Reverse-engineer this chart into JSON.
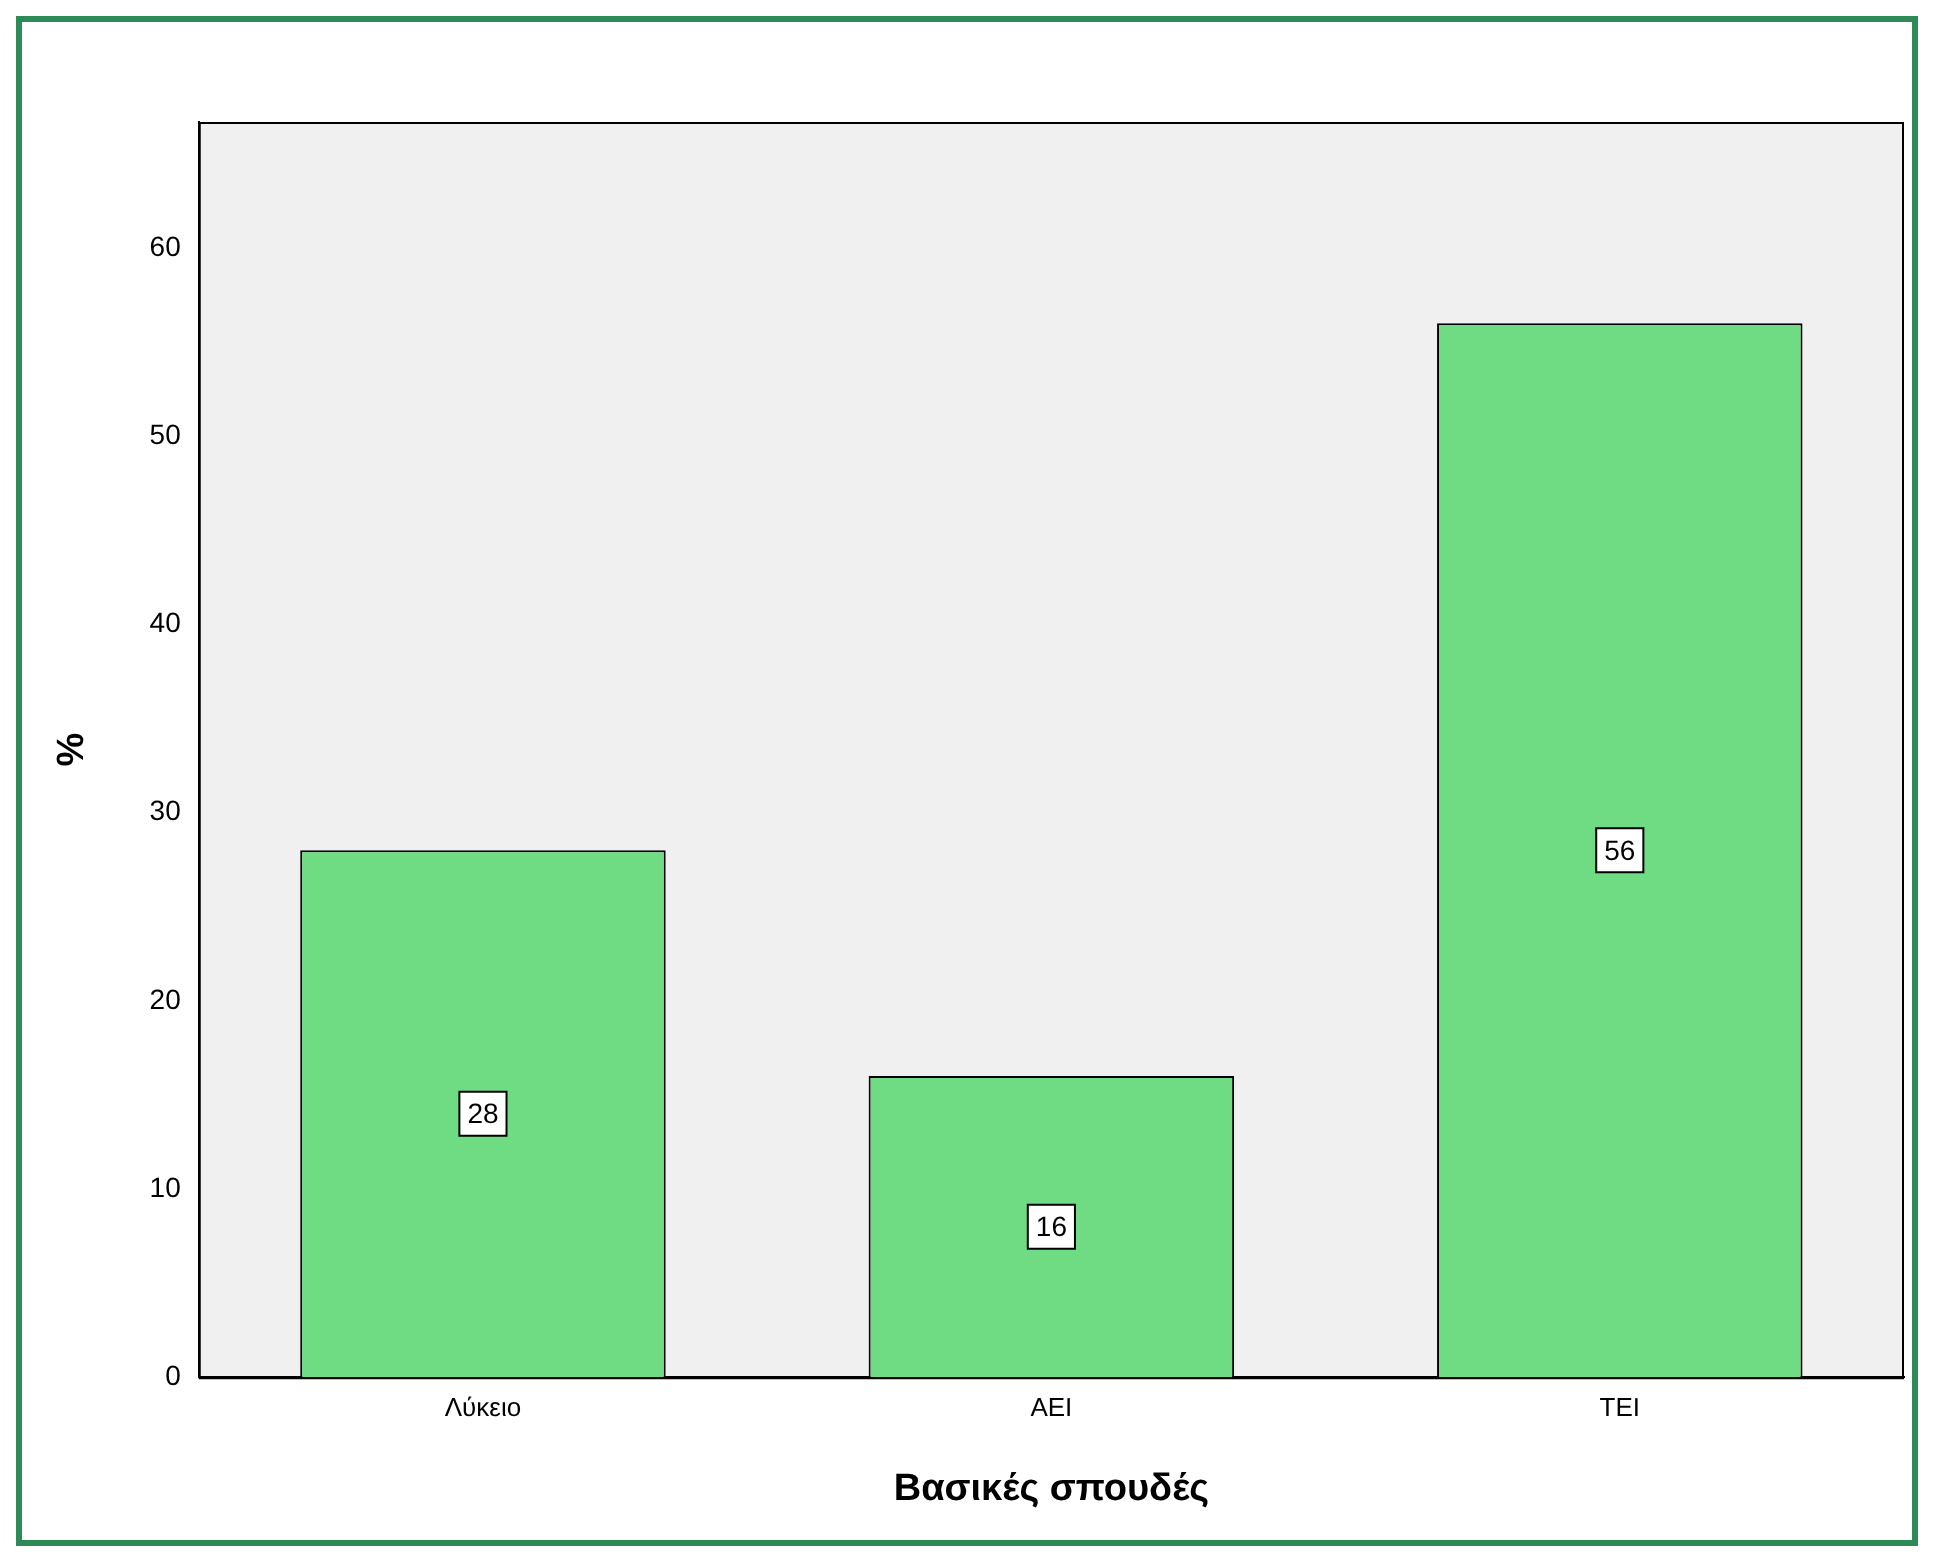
{
  "chart_data": {
    "type": "bar",
    "xlabel": "Βασικές σπουδές",
    "ylabel": "%",
    "categories": [
      "Λύκειο",
      "ΑΕΙ",
      "ΤΕΙ"
    ],
    "values": [
      28,
      16,
      56
    ],
    "color": "#6fdc84",
    "ylim": [
      0,
      66.7
    ],
    "yticks": [
      0,
      10,
      20,
      30,
      40,
      50,
      60
    ],
    "grid": false,
    "legend": false,
    "data_labels": true
  }
}
